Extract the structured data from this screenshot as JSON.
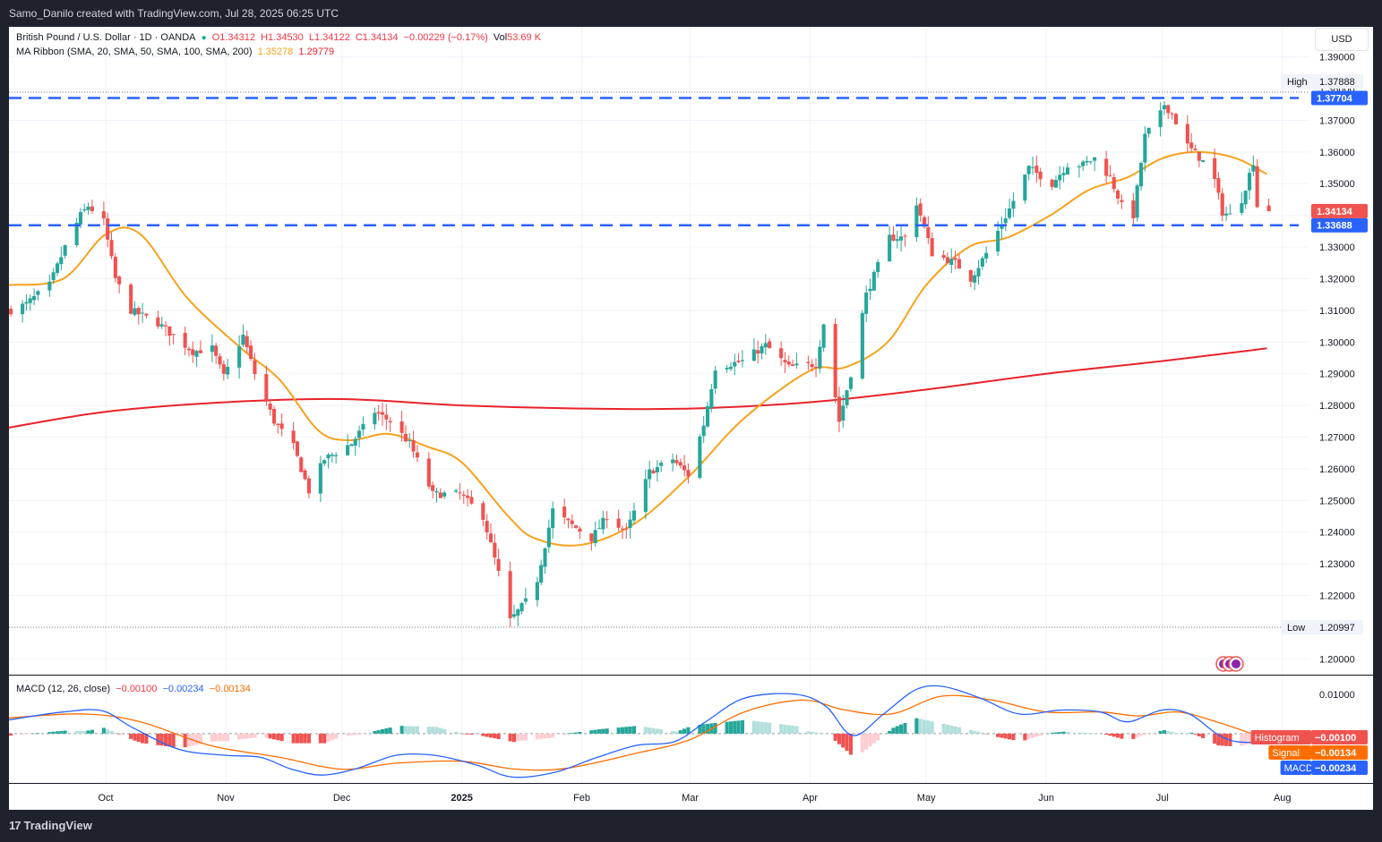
{
  "header": {
    "credit": "Samo_Danilo created with TradingView.com, Jul 28, 2025 06:25 UTC"
  },
  "legend": {
    "symbol": "British Pound / U.S. Dollar · 1D · OANDA",
    "open": "O1.34312",
    "high": "H1.34530",
    "low": "L1.34122",
    "close": "C1.34134",
    "change": "−0.00229 (−0.17%)",
    "volume_label": "Vol",
    "volume_value": "53.69 K",
    "ma_ribbon": "MA Ribbon (SMA, 20, SMA, 50, SMA, 100, SMA, 200)",
    "ma_val1": "1.35278",
    "ma_val2": "1.29779",
    "macd_title": "MACD (12, 26, close)",
    "macd_hist": "−0.00100",
    "macd_line": "−0.00234",
    "macd_signal": "−0.00134"
  },
  "currency_button": "USD",
  "footer_brand": "TradingView",
  "colors": {
    "up": "#26a69a",
    "down": "#ef5350",
    "sma20": "#f7a21b",
    "sma200": "#e8232a",
    "level": "#2962ff",
    "macd_line": "#2962ff",
    "signal_line": "#ff6d00",
    "hist_pos_strong": "#26a69a",
    "hist_pos_weak": "#b2dfdb",
    "hist_neg_strong": "#ef5350",
    "hist_neg_weak": "#ffcdd2"
  },
  "chart_data": [
    {
      "type": "candlestick",
      "instrument": "British Pound / U.S. Dollar",
      "timeframe": "1D",
      "ylim": [
        1.195,
        1.3995
      ],
      "y_ticks": [
        "1.20000",
        "1.21000",
        "1.22000",
        "1.23000",
        "1.24000",
        "1.25000",
        "1.26000",
        "1.27000",
        "1.28000",
        "1.29000",
        "1.30000",
        "1.31000",
        "1.32000",
        "1.33000",
        "1.34000",
        "1.35000",
        "1.36000",
        "1.37000",
        "1.38000",
        "1.39000"
      ],
      "x_ticks": [
        {
          "label": "Oct",
          "date": "2024-10-01"
        },
        {
          "label": "Nov",
          "date": "2024-11-01"
        },
        {
          "label": "Dec",
          "date": "2024-12-01"
        },
        {
          "label": "2025",
          "date": "2025-01-01"
        },
        {
          "label": "Feb",
          "date": "2025-02-01"
        },
        {
          "label": "Mar",
          "date": "2025-03-01"
        },
        {
          "label": "Apr",
          "date": "2025-04-01"
        },
        {
          "label": "May",
          "date": "2025-05-01"
        },
        {
          "label": "Jun",
          "date": "2025-06-01"
        },
        {
          "label": "Jul",
          "date": "2025-07-01"
        },
        {
          "label": "Aug",
          "date": "2025-08-01"
        }
      ],
      "x_range": [
        "2024-09-06",
        "2025-08-08"
      ],
      "horizontal_levels": [
        {
          "value": 1.37704,
          "label": "1.37704",
          "style": "dashed"
        },
        {
          "value": 1.33688,
          "label": "1.33688",
          "style": "dashed"
        }
      ],
      "extremes": {
        "high": {
          "label": "High",
          "value": "1.37888",
          "y": 1.37888
        },
        "low": {
          "label": "Low",
          "value": "1.20997",
          "y": 1.20997
        }
      },
      "last_price": {
        "value": 1.34134,
        "label": "1.34134"
      },
      "price_anchors": [
        [
          "2024-09-06",
          1.31
        ],
        [
          "2024-09-10",
          1.312
        ],
        [
          "2024-09-16",
          1.318
        ],
        [
          "2024-09-20",
          1.33
        ],
        [
          "2024-09-24",
          1.34
        ],
        [
          "2024-09-26",
          1.343
        ],
        [
          "2024-09-30",
          1.338
        ],
        [
          "2024-10-03",
          1.32
        ],
        [
          "2024-10-07",
          1.31
        ],
        [
          "2024-10-14",
          1.306
        ],
        [
          "2024-10-18",
          1.302
        ],
        [
          "2024-10-23",
          1.297
        ],
        [
          "2024-10-28",
          1.298
        ],
        [
          "2024-10-31",
          1.289
        ],
        [
          "2024-11-05",
          1.302
        ],
        [
          "2024-11-08",
          1.29
        ],
        [
          "2024-11-13",
          1.275
        ],
        [
          "2024-11-18",
          1.267
        ],
        [
          "2024-11-22",
          1.253
        ],
        [
          "2024-11-26",
          1.263
        ],
        [
          "2024-12-03",
          1.268
        ],
        [
          "2024-12-09",
          1.278
        ],
        [
          "2024-12-13",
          1.275
        ],
        [
          "2024-12-18",
          1.268
        ],
        [
          "2024-12-24",
          1.252
        ],
        [
          "2024-12-31",
          1.252
        ],
        [
          "2025-01-06",
          1.245
        ],
        [
          "2025-01-10",
          1.227
        ],
        [
          "2025-01-13",
          1.212
        ],
        [
          "2025-01-17",
          1.218
        ],
        [
          "2025-01-20",
          1.225
        ],
        [
          "2025-01-24",
          1.247
        ],
        [
          "2025-01-28",
          1.243
        ],
        [
          "2025-02-03",
          1.238
        ],
        [
          "2025-02-07",
          1.245
        ],
        [
          "2025-02-12",
          1.24
        ],
        [
          "2025-02-18",
          1.259
        ],
        [
          "2025-02-24",
          1.263
        ],
        [
          "2025-02-28",
          1.258
        ],
        [
          "2025-03-04",
          1.274
        ],
        [
          "2025-03-07",
          1.292
        ],
        [
          "2025-03-14",
          1.294
        ],
        [
          "2025-03-20",
          1.299
        ],
        [
          "2025-03-26",
          1.292
        ],
        [
          "2025-04-02",
          1.293
        ],
        [
          "2025-04-04",
          1.306
        ],
        [
          "2025-04-08",
          1.275
        ],
        [
          "2025-04-11",
          1.29
        ],
        [
          "2025-04-15",
          1.315
        ],
        [
          "2025-04-21",
          1.333
        ],
        [
          "2025-04-25",
          1.333
        ],
        [
          "2025-04-28",
          1.344
        ],
        [
          "2025-05-02",
          1.328
        ],
        [
          "2025-05-08",
          1.325
        ],
        [
          "2025-05-12",
          1.32
        ],
        [
          "2025-05-16",
          1.328
        ],
        [
          "2025-05-22",
          1.342
        ],
        [
          "2025-05-27",
          1.355
        ],
        [
          "2025-06-02",
          1.35
        ],
        [
          "2025-06-06",
          1.356
        ],
        [
          "2025-06-10",
          1.356
        ],
        [
          "2025-06-13",
          1.358
        ],
        [
          "2025-06-17",
          1.352
        ],
        [
          "2025-06-20",
          1.343
        ],
        [
          "2025-06-23",
          1.34
        ],
        [
          "2025-06-26",
          1.365
        ],
        [
          "2025-06-30",
          1.372
        ],
        [
          "2025-07-01",
          1.375
        ],
        [
          "2025-07-03",
          1.372
        ],
        [
          "2025-07-07",
          1.362
        ],
        [
          "2025-07-11",
          1.357
        ],
        [
          "2025-07-14",
          1.351
        ],
        [
          "2025-07-16",
          1.341
        ],
        [
          "2025-07-18",
          1.34
        ],
        [
          "2025-07-21",
          1.345
        ],
        [
          "2025-07-23",
          1.353
        ],
        [
          "2025-07-24",
          1.357
        ],
        [
          "2025-07-25",
          1.343
        ],
        [
          "2025-07-28",
          1.341
        ]
      ],
      "sma20": [
        [
          "2024-09-06",
          1.318
        ],
        [
          "2024-09-20",
          1.32
        ],
        [
          "2024-10-01",
          1.334
        ],
        [
          "2024-10-10",
          1.334
        ],
        [
          "2024-10-22",
          1.314
        ],
        [
          "2024-11-05",
          1.298
        ],
        [
          "2024-11-15",
          1.288
        ],
        [
          "2024-11-25",
          1.272
        ],
        [
          "2024-12-03",
          1.269
        ],
        [
          "2024-12-13",
          1.271
        ],
        [
          "2024-12-23",
          1.267
        ],
        [
          "2025-01-01",
          1.262
        ],
        [
          "2025-01-13",
          1.245
        ],
        [
          "2025-01-20",
          1.238
        ],
        [
          "2025-02-01",
          1.236
        ],
        [
          "2025-02-15",
          1.243
        ],
        [
          "2025-03-01",
          1.258
        ],
        [
          "2025-03-15",
          1.276
        ],
        [
          "2025-04-01",
          1.291
        ],
        [
          "2025-04-10",
          1.292
        ],
        [
          "2025-04-21",
          1.3
        ],
        [
          "2025-05-01",
          1.318
        ],
        [
          "2025-05-12",
          1.33
        ],
        [
          "2025-05-22",
          1.333
        ],
        [
          "2025-06-02",
          1.34
        ],
        [
          "2025-06-12",
          1.348
        ],
        [
          "2025-06-22",
          1.352
        ],
        [
          "2025-07-01",
          1.358
        ],
        [
          "2025-07-10",
          1.36
        ],
        [
          "2025-07-20",
          1.358
        ],
        [
          "2025-07-28",
          1.353
        ]
      ],
      "sma200": [
        [
          "2024-09-06",
          1.273
        ],
        [
          "2024-10-01",
          1.278
        ],
        [
          "2024-11-01",
          1.281
        ],
        [
          "2024-12-01",
          1.282
        ],
        [
          "2025-01-01",
          1.28
        ],
        [
          "2025-02-01",
          1.279
        ],
        [
          "2025-03-01",
          1.279
        ],
        [
          "2025-04-01",
          1.281
        ],
        [
          "2025-05-01",
          1.285
        ],
        [
          "2025-06-01",
          1.29
        ],
        [
          "2025-07-01",
          1.294
        ],
        [
          "2025-07-28",
          1.298
        ]
      ]
    },
    {
      "type": "macd",
      "title": "MACD (12, 26, close)",
      "ylim": [
        -0.0125,
        0.0145
      ],
      "y_ticks": [
        "0.01000"
      ],
      "histogram": {
        "label": "Histogram",
        "value": "−0.00100"
      },
      "signal": {
        "label": "Signal",
        "value": "−0.00134"
      },
      "macd": {
        "label": "MACD",
        "value": "−0.00234"
      },
      "macd_anchors": [
        [
          "2024-09-06",
          0.0035
        ],
        [
          "2024-09-20",
          0.0055
        ],
        [
          "2024-09-30",
          0.0058
        ],
        [
          "2024-10-08",
          0.0015
        ],
        [
          "2024-10-20",
          -0.004
        ],
        [
          "2024-11-01",
          -0.0055
        ],
        [
          "2024-11-10",
          -0.006
        ],
        [
          "2024-11-18",
          -0.009
        ],
        [
          "2024-11-26",
          -0.0105
        ],
        [
          "2024-12-05",
          -0.0088
        ],
        [
          "2024-12-15",
          -0.0055
        ],
        [
          "2024-12-25",
          -0.0055
        ],
        [
          "2025-01-05",
          -0.008
        ],
        [
          "2025-01-14",
          -0.011
        ],
        [
          "2025-01-25",
          -0.0098
        ],
        [
          "2025-02-05",
          -0.006
        ],
        [
          "2025-02-15",
          -0.003
        ],
        [
          "2025-02-25",
          -0.002
        ],
        [
          "2025-03-05",
          0.003
        ],
        [
          "2025-03-15",
          0.009
        ],
        [
          "2025-03-28",
          0.01
        ],
        [
          "2025-04-05",
          0.007
        ],
        [
          "2025-04-12",
          -0.0005
        ],
        [
          "2025-04-20",
          0.005
        ],
        [
          "2025-04-28",
          0.011
        ],
        [
          "2025-05-05",
          0.012
        ],
        [
          "2025-05-15",
          0.009
        ],
        [
          "2025-05-25",
          0.005
        ],
        [
          "2025-06-05",
          0.006
        ],
        [
          "2025-06-15",
          0.0055
        ],
        [
          "2025-06-22",
          0.003
        ],
        [
          "2025-07-01",
          0.006
        ],
        [
          "2025-07-08",
          0.005
        ],
        [
          "2025-07-15",
          0.0
        ],
        [
          "2025-07-20",
          -0.002
        ],
        [
          "2025-07-28",
          -0.0023
        ]
      ],
      "signal_anchors": [
        [
          "2024-09-06",
          0.004
        ],
        [
          "2024-09-25",
          0.005
        ],
        [
          "2024-10-10",
          0.003
        ],
        [
          "2024-10-28",
          -0.003
        ],
        [
          "2024-11-15",
          -0.006
        ],
        [
          "2024-12-01",
          -0.009
        ],
        [
          "2024-12-15",
          -0.0075
        ],
        [
          "2025-01-01",
          -0.007
        ],
        [
          "2025-01-15",
          -0.009
        ],
        [
          "2025-01-28",
          -0.0088
        ],
        [
          "2025-02-15",
          -0.005
        ],
        [
          "2025-03-01",
          -0.0015
        ],
        [
          "2025-03-15",
          0.0055
        ],
        [
          "2025-03-30",
          0.0085
        ],
        [
          "2025-04-10",
          0.006
        ],
        [
          "2025-04-22",
          0.005
        ],
        [
          "2025-05-05",
          0.0095
        ],
        [
          "2025-05-18",
          0.0085
        ],
        [
          "2025-06-01",
          0.0055
        ],
        [
          "2025-06-15",
          0.0055
        ],
        [
          "2025-06-25",
          0.0045
        ],
        [
          "2025-07-05",
          0.0055
        ],
        [
          "2025-07-15",
          0.003
        ],
        [
          "2025-07-28",
          -0.0013
        ]
      ]
    }
  ]
}
